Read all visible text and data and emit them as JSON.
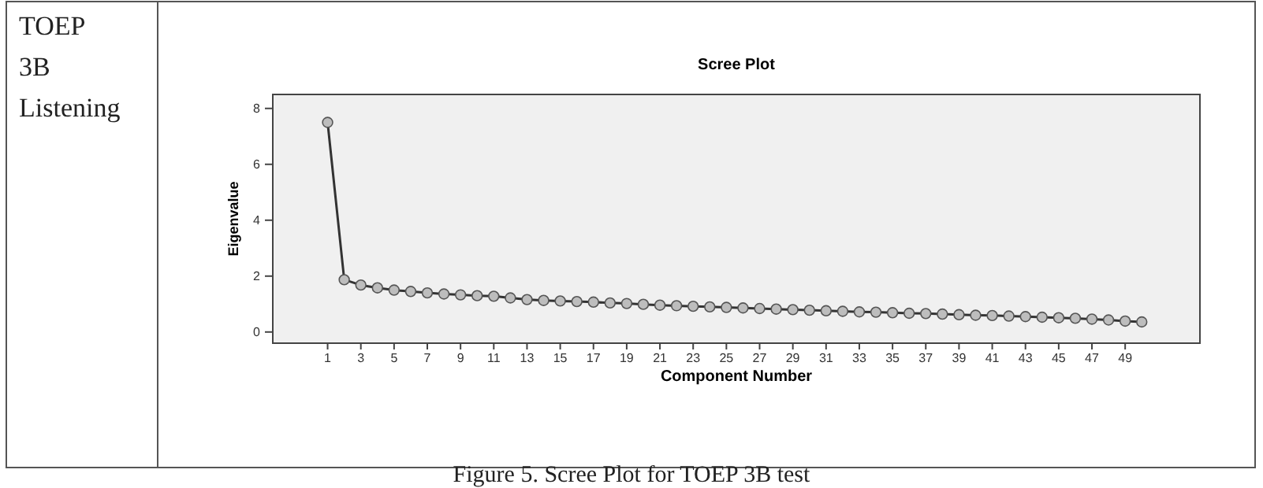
{
  "chart_data": {
    "type": "line",
    "title": "Scree Plot",
    "xlabel": "Component Number",
    "ylabel": "Eigenvalue",
    "annotations": [
      "TOEP 3B Listening",
      "Figure 5. Scree Plot for TOEP 3B test"
    ],
    "x": [
      1,
      2,
      3,
      4,
      5,
      6,
      7,
      8,
      9,
      10,
      11,
      12,
      13,
      14,
      15,
      16,
      17,
      18,
      19,
      20,
      21,
      22,
      23,
      24,
      25,
      26,
      27,
      28,
      29,
      30,
      31,
      32,
      33,
      34,
      35,
      36,
      37,
      38,
      39,
      40,
      41,
      42,
      43,
      44,
      45,
      46,
      47,
      48,
      49,
      50
    ],
    "series": [
      {
        "color": "#333333",
        "values": [
          7.5,
          1.87,
          1.68,
          1.58,
          1.5,
          1.45,
          1.4,
          1.36,
          1.33,
          1.3,
          1.28,
          1.22,
          1.16,
          1.13,
          1.11,
          1.09,
          1.07,
          1.04,
          1.02,
          0.99,
          0.96,
          0.94,
          0.92,
          0.9,
          0.88,
          0.86,
          0.84,
          0.82,
          0.8,
          0.78,
          0.76,
          0.74,
          0.72,
          0.71,
          0.69,
          0.67,
          0.66,
          0.64,
          0.62,
          0.6,
          0.59,
          0.57,
          0.55,
          0.53,
          0.51,
          0.49,
          0.46,
          0.43,
          0.39,
          0.36
        ]
      }
    ],
    "xlim": [
      -2.3,
      53.5
    ],
    "ylim": [
      -0.4,
      8.5
    ],
    "xticks": [
      1,
      3,
      5,
      7,
      9,
      11,
      13,
      15,
      17,
      19,
      21,
      23,
      25,
      27,
      29,
      31,
      33,
      35,
      37,
      39,
      41,
      43,
      45,
      47,
      49
    ],
    "yticks": [
      0,
      2,
      4,
      6,
      8
    ],
    "marker": "circle",
    "line_style": "solid"
  }
}
